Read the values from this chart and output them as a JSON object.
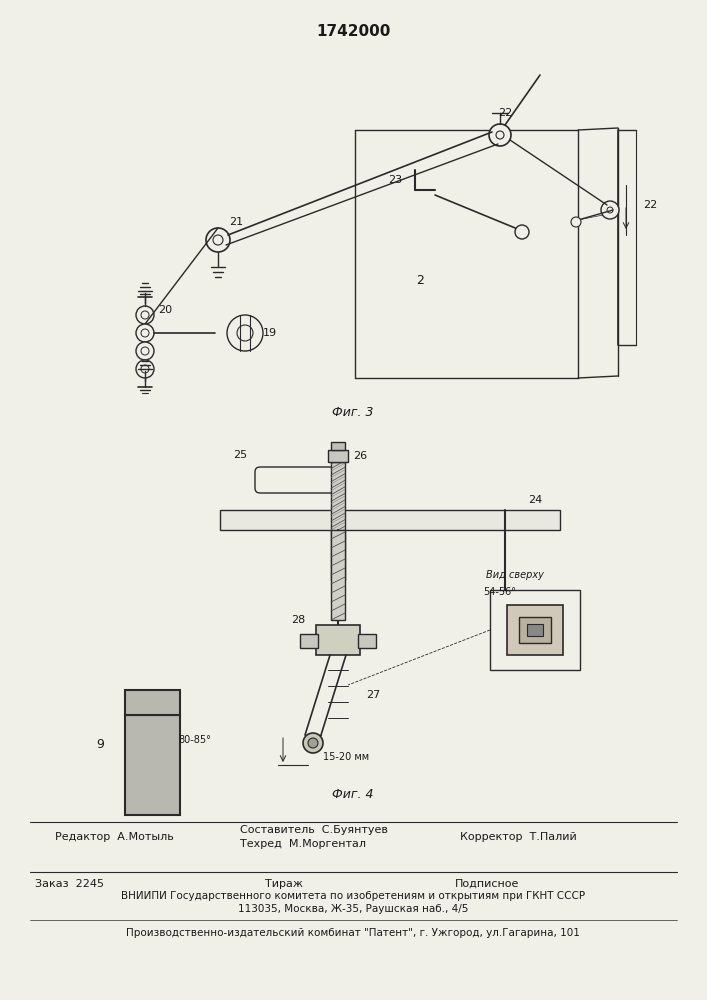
{
  "title": "1742000",
  "fig3_label": "Фиг. 3",
  "fig4_label": "Фиг. 4",
  "editor_line": "Редактор  А.Мотыль",
  "compositor_line1": "Составитель  С.Буянтуев",
  "compositor_line2": "Техред  М.Моргентал",
  "corrector_line": "Корректор  Т.Палий",
  "order_line": "Заказ  2245",
  "tirazh_line": "Тираж",
  "podpisnoe_line": "Подписное",
  "vniip_line": "ВНИИПИ Государственного комитета по изобретениям и открытиям при ГКНТ СССР",
  "address_line": "113035, Москва, Ж-35, Раушская наб., 4/5",
  "factory_line": "Производственно-издательский комбинат \"Патент\", г. Ужгород, ул.Гагарина, 101",
  "bg_color": "#f0efe8",
  "line_color": "#2a2a2a",
  "text_color": "#1a1a1a"
}
